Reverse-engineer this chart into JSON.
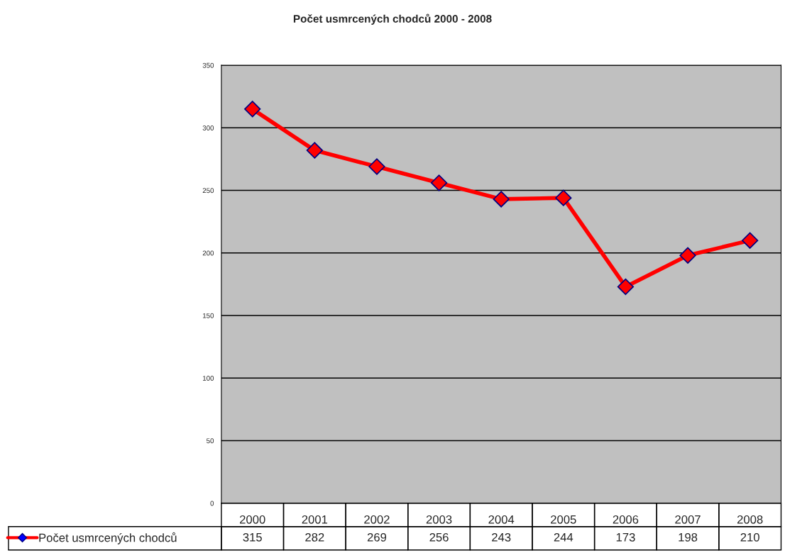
{
  "chart_data": {
    "type": "line",
    "title": "Počet usmrcených chodců 2000 - 2008",
    "categories": [
      "2000",
      "2001",
      "2002",
      "2003",
      "2004",
      "2005",
      "2006",
      "2007",
      "2008"
    ],
    "series": [
      {
        "name": "Počet usmrcených chodců",
        "color": "#ff0000",
        "values": [
          315,
          282,
          269,
          256,
          243,
          244,
          173,
          198,
          210
        ]
      }
    ],
    "ylim": [
      0,
      350
    ],
    "yticks": [
      0,
      50,
      100,
      150,
      200,
      250,
      300,
      350
    ],
    "grid": "y",
    "marker": "diamond",
    "line_style": "solid",
    "data_labels": true,
    "legend": "bottom left"
  }
}
